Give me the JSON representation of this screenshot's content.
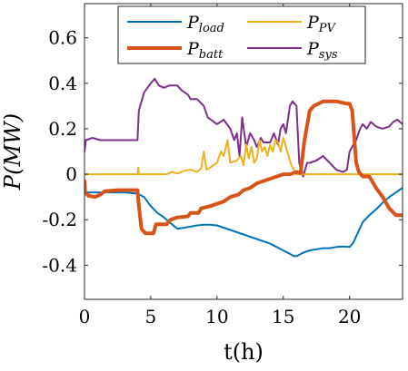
{
  "chart_data": {
    "type": "line",
    "title": "",
    "xlabel": "t(h)",
    "ylabel": "P(MW)",
    "xlim": [
      0,
      24
    ],
    "ylim": [
      -0.55,
      0.75
    ],
    "xticks": [
      0,
      5,
      10,
      15,
      20
    ],
    "yticks": [
      -0.4,
      -0.2,
      0,
      0.2,
      0.4,
      0.6
    ],
    "xtick_labels": [
      "0",
      "5",
      "10",
      "15",
      "20"
    ],
    "ytick_labels": [
      "-0.4",
      "-0.2",
      "0",
      "0.2",
      "0.4",
      "0.6"
    ],
    "grid": false,
    "legend_position": "top",
    "series": [
      {
        "name": "P_load",
        "legend_main": "P",
        "legend_sub": "load",
        "color": "#0072BD",
        "width": 2,
        "points": [
          [
            0,
            -0.08
          ],
          [
            1,
            -0.08
          ],
          [
            2,
            -0.08
          ],
          [
            3,
            -0.08
          ],
          [
            4,
            -0.085
          ],
          [
            4.5,
            -0.1
          ],
          [
            5,
            -0.14
          ],
          [
            5.5,
            -0.17
          ],
          [
            6,
            -0.19
          ],
          [
            6.5,
            -0.215
          ],
          [
            7,
            -0.24
          ],
          [
            7.5,
            -0.235
          ],
          [
            8,
            -0.23
          ],
          [
            8.5,
            -0.225
          ],
          [
            9,
            -0.222
          ],
          [
            9.5,
            -0.222
          ],
          [
            10,
            -0.225
          ],
          [
            10.5,
            -0.235
          ],
          [
            11,
            -0.245
          ],
          [
            11.5,
            -0.255
          ],
          [
            12,
            -0.265
          ],
          [
            12.5,
            -0.275
          ],
          [
            13,
            -0.285
          ],
          [
            13.5,
            -0.295
          ],
          [
            14,
            -0.305
          ],
          [
            14.5,
            -0.32
          ],
          [
            15,
            -0.335
          ],
          [
            15.5,
            -0.35
          ],
          [
            15.8,
            -0.36
          ],
          [
            16,
            -0.36
          ],
          [
            16.5,
            -0.345
          ],
          [
            17,
            -0.335
          ],
          [
            17.5,
            -0.33
          ],
          [
            18,
            -0.325
          ],
          [
            18.5,
            -0.325
          ],
          [
            19,
            -0.32
          ],
          [
            19.5,
            -0.318
          ],
          [
            20,
            -0.32
          ],
          [
            20.3,
            -0.3
          ],
          [
            20.6,
            -0.26
          ],
          [
            21,
            -0.21
          ],
          [
            21.5,
            -0.18
          ],
          [
            22,
            -0.155
          ],
          [
            22.5,
            -0.125
          ],
          [
            23,
            -0.1
          ],
          [
            23.5,
            -0.08
          ],
          [
            24,
            -0.06
          ]
        ]
      },
      {
        "name": "P_PV",
        "legend_main": "P",
        "legend_sub": "PV",
        "color": "#EDB120",
        "width": 2,
        "points": [
          [
            0,
            0
          ],
          [
            4,
            0
          ],
          [
            4.05,
            0.03
          ],
          [
            4.1,
            0
          ],
          [
            6.2,
            0
          ],
          [
            6.6,
            0.01
          ],
          [
            7,
            0.003
          ],
          [
            7.5,
            0.015
          ],
          [
            8,
            0.02
          ],
          [
            8.5,
            0.01
          ],
          [
            8.8,
            0.025
          ],
          [
            9,
            0.1
          ],
          [
            9.2,
            0.02
          ],
          [
            9.5,
            0.03
          ],
          [
            10,
            0.05
          ],
          [
            10.3,
            0.1
          ],
          [
            10.5,
            0.08
          ],
          [
            10.8,
            0.15
          ],
          [
            11,
            0.05
          ],
          [
            11.5,
            0.06
          ],
          [
            11.8,
            0.08
          ],
          [
            12,
            0.04
          ],
          [
            12.2,
            0.13
          ],
          [
            12.4,
            0.07
          ],
          [
            12.6,
            0.12
          ],
          [
            12.8,
            0.05
          ],
          [
            13,
            0.07
          ],
          [
            13.2,
            0.15
          ],
          [
            13.4,
            0.1
          ],
          [
            13.6,
            0.12
          ],
          [
            13.8,
            0.08
          ],
          [
            14,
            0.13
          ],
          [
            14.2,
            0.1
          ],
          [
            14.4,
            0.15
          ],
          [
            14.6,
            0.14
          ],
          [
            14.8,
            0.1
          ],
          [
            15,
            0.16
          ],
          [
            15.2,
            0.12
          ],
          [
            15.4,
            0.08
          ],
          [
            15.6,
            0.04
          ],
          [
            15.8,
            0.02
          ],
          [
            16,
            0
          ],
          [
            24,
            0
          ]
        ]
      },
      {
        "name": "P_batt",
        "legend_main": "P",
        "legend_sub": "batt",
        "color": "#D95319",
        "width": 4,
        "points": [
          [
            0,
            -0.03
          ],
          [
            0.05,
            -0.08
          ],
          [
            0.3,
            -0.095
          ],
          [
            0.8,
            -0.1
          ],
          [
            1.2,
            -0.09
          ],
          [
            1.5,
            -0.075
          ],
          [
            2.5,
            -0.07
          ],
          [
            3.5,
            -0.07
          ],
          [
            4,
            -0.07
          ],
          [
            4.1,
            -0.14
          ],
          [
            4.3,
            -0.24
          ],
          [
            4.6,
            -0.26
          ],
          [
            5.2,
            -0.26
          ],
          [
            5.4,
            -0.22
          ],
          [
            6.2,
            -0.22
          ],
          [
            6.5,
            -0.2
          ],
          [
            7,
            -0.19
          ],
          [
            7.8,
            -0.185
          ],
          [
            8,
            -0.17
          ],
          [
            8.6,
            -0.17
          ],
          [
            8.8,
            -0.15
          ],
          [
            9.5,
            -0.14
          ],
          [
            10,
            -0.13
          ],
          [
            10.5,
            -0.12
          ],
          [
            11,
            -0.1
          ],
          [
            11.6,
            -0.09
          ],
          [
            12,
            -0.07
          ],
          [
            12.5,
            -0.06
          ],
          [
            13,
            -0.04
          ],
          [
            14,
            -0.02
          ],
          [
            14.5,
            -0.01
          ],
          [
            15,
            0
          ],
          [
            15.5,
            0
          ],
          [
            16,
            0.01
          ],
          [
            16.3,
            0.005
          ],
          [
            16.6,
            0.15
          ],
          [
            17,
            0.28
          ],
          [
            17.3,
            0.3
          ],
          [
            18,
            0.32
          ],
          [
            19,
            0.32
          ],
          [
            19.8,
            0.31
          ],
          [
            20,
            0.31
          ],
          [
            20.2,
            0.28
          ],
          [
            20.5,
            0.05
          ],
          [
            20.7,
            0.01
          ],
          [
            21,
            -0.01
          ],
          [
            21.5,
            -0.01
          ],
          [
            22,
            -0.06
          ],
          [
            22.5,
            -0.1
          ],
          [
            23,
            -0.15
          ],
          [
            23.5,
            -0.18
          ],
          [
            24,
            -0.18
          ]
        ]
      },
      {
        "name": "P_sys",
        "legend_main": "P",
        "legend_sub": "sys",
        "color": "#7E2F8E",
        "width": 2,
        "points": [
          [
            0,
            0.1
          ],
          [
            0.1,
            0.15
          ],
          [
            0.6,
            0.16
          ],
          [
            1.2,
            0.15
          ],
          [
            2,
            0.15
          ],
          [
            3,
            0.15
          ],
          [
            4,
            0.15
          ],
          [
            4.1,
            0.28
          ],
          [
            4.5,
            0.36
          ],
          [
            5,
            0.4
          ],
          [
            5.3,
            0.42
          ],
          [
            5.6,
            0.39
          ],
          [
            6,
            0.38
          ],
          [
            6.4,
            0.39
          ],
          [
            7,
            0.39
          ],
          [
            7.3,
            0.37
          ],
          [
            7.8,
            0.35
          ],
          [
            8,
            0.33
          ],
          [
            8.5,
            0.33
          ],
          [
            9,
            0.3
          ],
          [
            9.3,
            0.25
          ],
          [
            10,
            0.22
          ],
          [
            10.5,
            0.24
          ],
          [
            11,
            0.2
          ],
          [
            11.3,
            0.15
          ],
          [
            11.5,
            0.18
          ],
          [
            11.7,
            0.08
          ],
          [
            11.9,
            0.25
          ],
          [
            12.2,
            0.12
          ],
          [
            12.5,
            0.18
          ],
          [
            12.8,
            0.15
          ],
          [
            13,
            0.12
          ],
          [
            13.3,
            0.16
          ],
          [
            13.5,
            0.14
          ],
          [
            14,
            0.14
          ],
          [
            14.3,
            0.18
          ],
          [
            14.6,
            0.13
          ],
          [
            14.8,
            0.2
          ],
          [
            15,
            0.22
          ],
          [
            15.2,
            0.18
          ],
          [
            15.5,
            0.3
          ],
          [
            15.7,
            0.32
          ],
          [
            16,
            0.3
          ],
          [
            16.2,
            0.05
          ],
          [
            16.5,
            -0.01
          ],
          [
            16.8,
            0.05
          ],
          [
            17,
            0.05
          ],
          [
            17.5,
            0.06
          ],
          [
            18,
            0.08
          ],
          [
            18.5,
            0.05
          ],
          [
            19,
            0.02
          ],
          [
            19.5,
            0.01
          ],
          [
            19.8,
            0.02
          ],
          [
            20,
            0.1
          ],
          [
            20.5,
            0.15
          ],
          [
            20.8,
            0.2
          ],
          [
            21,
            0.22
          ],
          [
            21.3,
            0.2
          ],
          [
            21.6,
            0.23
          ],
          [
            22,
            0.21
          ],
          [
            22.5,
            0.2
          ],
          [
            23,
            0.21
          ],
          [
            23.3,
            0.23
          ],
          [
            23.6,
            0.24
          ],
          [
            24,
            0.22
          ]
        ]
      }
    ]
  }
}
